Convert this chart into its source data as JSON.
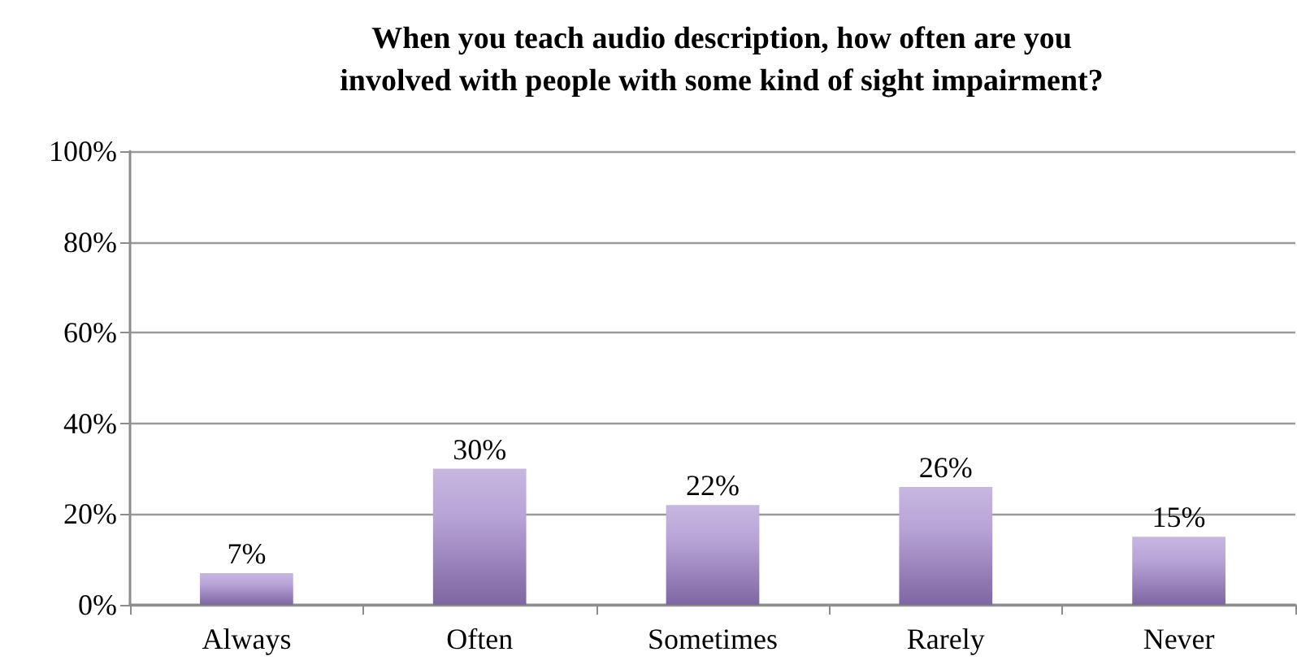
{
  "chart_data": {
    "type": "bar",
    "title": "When you teach audio description, how often are you\ninvolved with people with some kind of sight impairment?",
    "categories": [
      "Always",
      "Often",
      "Sometimes",
      "Rarely",
      "Never"
    ],
    "values": [
      7,
      30,
      22,
      26,
      15
    ],
    "color": "#9a7cc6",
    "value_labels": [
      "7%",
      "30%",
      "22%",
      "26%",
      "15%"
    ],
    "ylim": [
      0,
      100
    ],
    "yticks": [
      {
        "value": 0,
        "label": "0%"
      },
      {
        "value": 20,
        "label": "20%"
      },
      {
        "value": 40,
        "label": "40%"
      },
      {
        "value": 60,
        "label": "60%"
      },
      {
        "value": 80,
        "label": "80%"
      },
      {
        "value": 100,
        "label": "100%"
      }
    ],
    "grid": "y"
  }
}
